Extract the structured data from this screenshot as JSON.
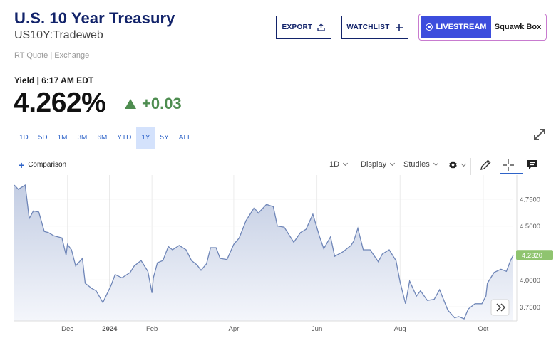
{
  "header": {
    "title": "U.S. 10 Year Treasury",
    "symbol": "US10Y:Tradeweb",
    "quote_source": "RT Quote | Exchange"
  },
  "actions": {
    "export_label": "EXPORT",
    "watchlist_label": "WATCHLIST",
    "livestream_label": "LIVESTREAM",
    "squawk_label": "Squawk Box"
  },
  "quote": {
    "yield_label": "Yield | 6:17 AM EDT",
    "price": "4.262%",
    "change": "+0.03",
    "change_direction": "up",
    "change_color": "#4e8d50"
  },
  "ranges": {
    "items": [
      "1D",
      "5D",
      "1M",
      "3M",
      "6M",
      "YTD",
      "1Y",
      "5Y",
      "ALL"
    ],
    "active": "1Y"
  },
  "toolbar": {
    "comparison_label": "Comparison",
    "interval_label": "1D",
    "display_label": "Display",
    "studies_label": "Studies",
    "icons": [
      "gear-icon",
      "pencil-icon",
      "crosshair-icon",
      "comment-icon"
    ]
  },
  "colors": {
    "title": "#12236a",
    "accent": "#2e63c8",
    "live": "#3c4ddd",
    "line": "#6f86b8",
    "fill_top": "#c3cde3",
    "last_value_badge": "#8fc46f"
  },
  "chart_data": {
    "type": "area",
    "title": "",
    "xlabel": "",
    "ylabel": "",
    "x_tick_labels": [
      "Dec",
      "2024",
      "Feb",
      "Apr",
      "Jun",
      "Aug",
      "Oct"
    ],
    "y_tick_labels": [
      "4.7500",
      "4.5000",
      "4.2500",
      "4.0000",
      "3.7500"
    ],
    "ylim": [
      3.62,
      4.92
    ],
    "last_value_label": "4.2320",
    "grid": true,
    "x_dates": [
      "2023-10-23",
      "2023-10-26",
      "2023-10-31",
      "2023-11-03",
      "2023-11-06",
      "2023-11-10",
      "2023-11-14",
      "2023-11-17",
      "2023-11-21",
      "2023-11-27",
      "2023-11-30",
      "2023-12-01",
      "2023-12-04",
      "2023-12-07",
      "2023-12-12",
      "2023-12-14",
      "2023-12-19",
      "2023-12-22",
      "2023-12-27",
      "2024-01-02",
      "2024-01-05",
      "2024-01-10",
      "2024-01-16",
      "2024-01-19",
      "2024-01-24",
      "2024-01-29",
      "2024-02-01",
      "2024-02-02",
      "2024-02-05",
      "2024-02-09",
      "2024-02-13",
      "2024-02-16",
      "2024-02-21",
      "2024-02-26",
      "2024-03-01",
      "2024-03-05",
      "2024-03-08",
      "2024-03-12",
      "2024-03-15",
      "2024-03-19",
      "2024-03-22",
      "2024-03-27",
      "2024-04-01",
      "2024-04-05",
      "2024-04-10",
      "2024-04-16",
      "2024-04-19",
      "2024-04-25",
      "2024-04-30",
      "2024-05-03",
      "2024-05-08",
      "2024-05-15",
      "2024-05-20",
      "2024-05-24",
      "2024-05-29",
      "2024-06-03",
      "2024-06-06",
      "2024-06-11",
      "2024-06-14",
      "2024-06-20",
      "2024-06-26",
      "2024-06-28",
      "2024-07-01",
      "2024-07-05",
      "2024-07-10",
      "2024-07-16",
      "2024-07-19",
      "2024-07-24",
      "2024-07-29",
      "2024-08-01",
      "2024-08-05",
      "2024-08-08",
      "2024-08-13",
      "2024-08-16",
      "2024-08-21",
      "2024-08-26",
      "2024-08-30",
      "2024-09-05",
      "2024-09-10",
      "2024-09-13",
      "2024-09-17",
      "2024-09-20",
      "2024-09-25",
      "2024-09-30",
      "2024-10-03",
      "2024-10-04",
      "2024-10-09",
      "2024-10-14",
      "2024-10-18",
      "2024-10-21",
      "2024-10-23"
    ],
    "values": [
      4.88,
      4.84,
      4.88,
      4.57,
      4.64,
      4.63,
      4.45,
      4.44,
      4.41,
      4.39,
      4.23,
      4.33,
      4.28,
      4.13,
      4.2,
      3.97,
      3.92,
      3.9,
      3.79,
      3.95,
      4.05,
      4.02,
      4.07,
      4.13,
      4.18,
      4.08,
      3.88,
      4.02,
      4.16,
      4.18,
      4.31,
      4.28,
      4.32,
      4.28,
      4.18,
      4.14,
      4.09,
      4.15,
      4.3,
      4.3,
      4.2,
      4.19,
      4.33,
      4.39,
      4.55,
      4.67,
      4.62,
      4.7,
      4.68,
      4.5,
      4.49,
      4.35,
      4.44,
      4.47,
      4.61,
      4.4,
      4.29,
      4.4,
      4.22,
      4.26,
      4.32,
      4.36,
      4.48,
      4.28,
      4.28,
      4.17,
      4.24,
      4.28,
      4.18,
      3.98,
      3.78,
      3.99,
      3.85,
      3.9,
      3.81,
      3.82,
      3.91,
      3.72,
      3.65,
      3.66,
      3.64,
      3.73,
      3.78,
      3.78,
      3.85,
      3.97,
      4.07,
      4.1,
      4.08,
      4.18,
      4.23
    ]
  }
}
